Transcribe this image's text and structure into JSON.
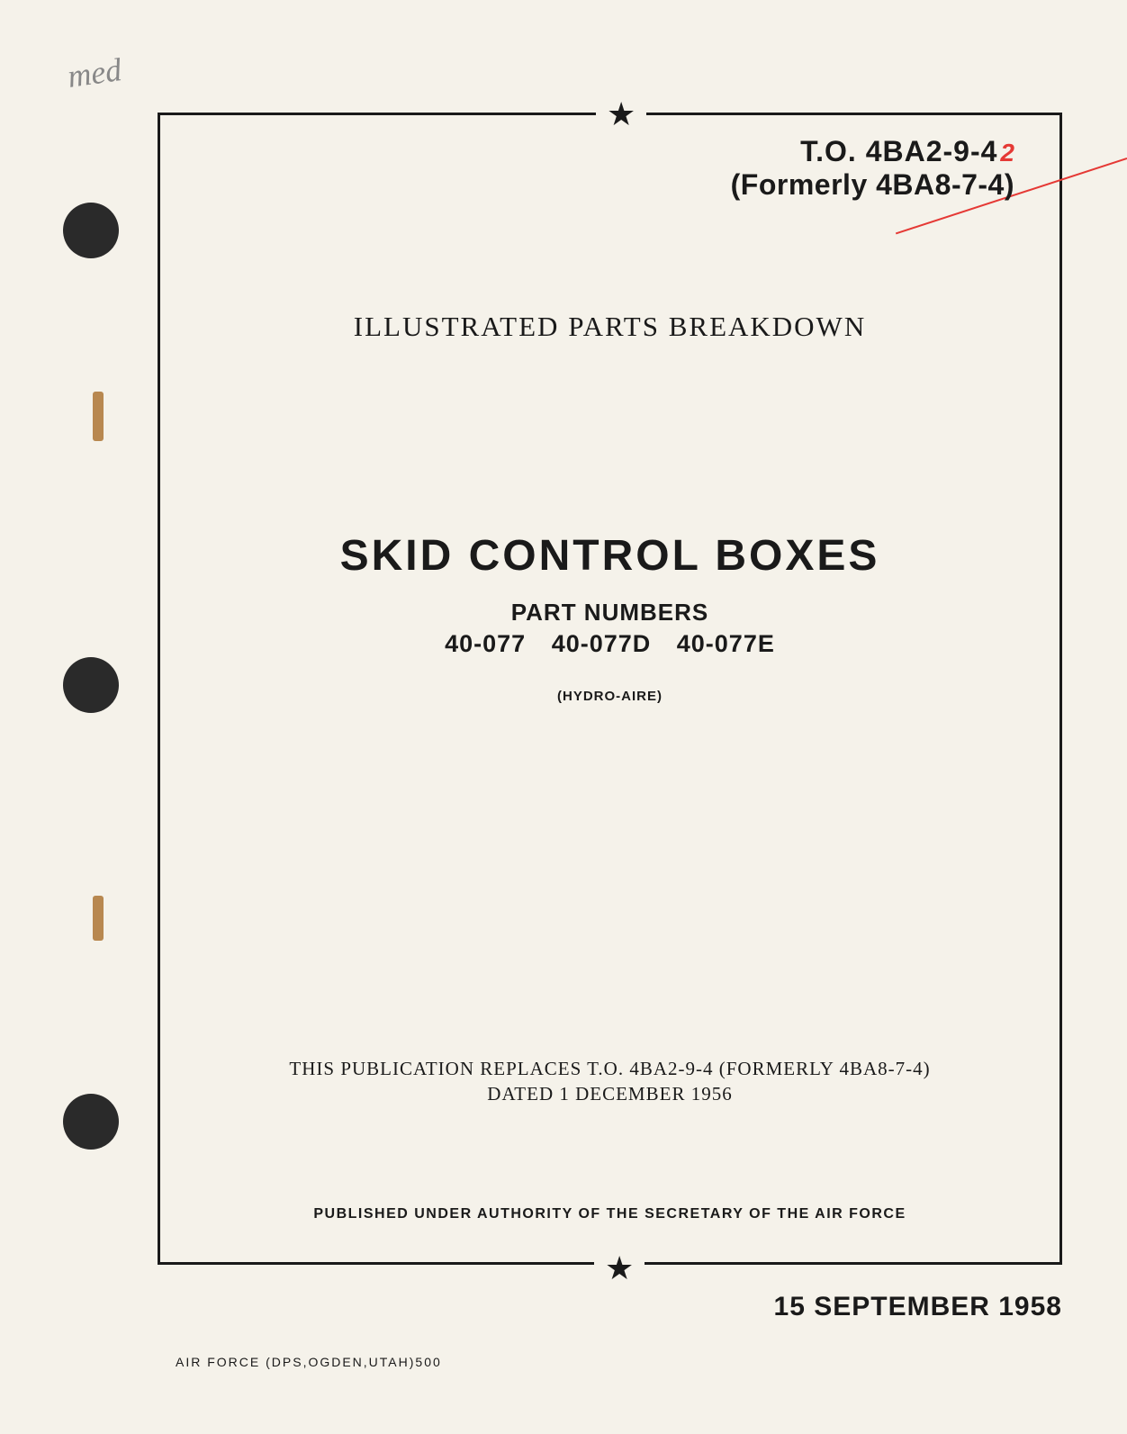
{
  "handwritten_note": "med",
  "header": {
    "to_number": "T.O. 4BA2-9-4",
    "red_mark": "2",
    "formerly": "(Formerly 4BA8-7-4)"
  },
  "document_type": "ILLUSTRATED PARTS BREAKDOWN",
  "title": "SKID CONTROL BOXES",
  "part_numbers": {
    "label": "PART NUMBERS",
    "list": "40-077 40-077D 40-077E"
  },
  "manufacturer": "(HYDRO-AIRE)",
  "replaces": {
    "line1": "THIS PUBLICATION REPLACES T.O. 4BA2-9-4 (FORMERLY 4BA8-7-4)",
    "line2": "DATED 1 DECEMBER 1956"
  },
  "authority": "PUBLISHED UNDER AUTHORITY OF THE SECRETARY OF THE AIR FORCE",
  "publication_date": "15 SEPTEMBER 1958",
  "printer_info": "AIR FORCE (DPS,OGDEN,UTAH)500",
  "stars": {
    "top": "★",
    "bottom": "★"
  },
  "colors": {
    "background": "#f5f2ea",
    "text": "#1a1a1a",
    "hole": "#2a2a2a",
    "binding": "#b88850",
    "red_annotation": "#e53935"
  }
}
